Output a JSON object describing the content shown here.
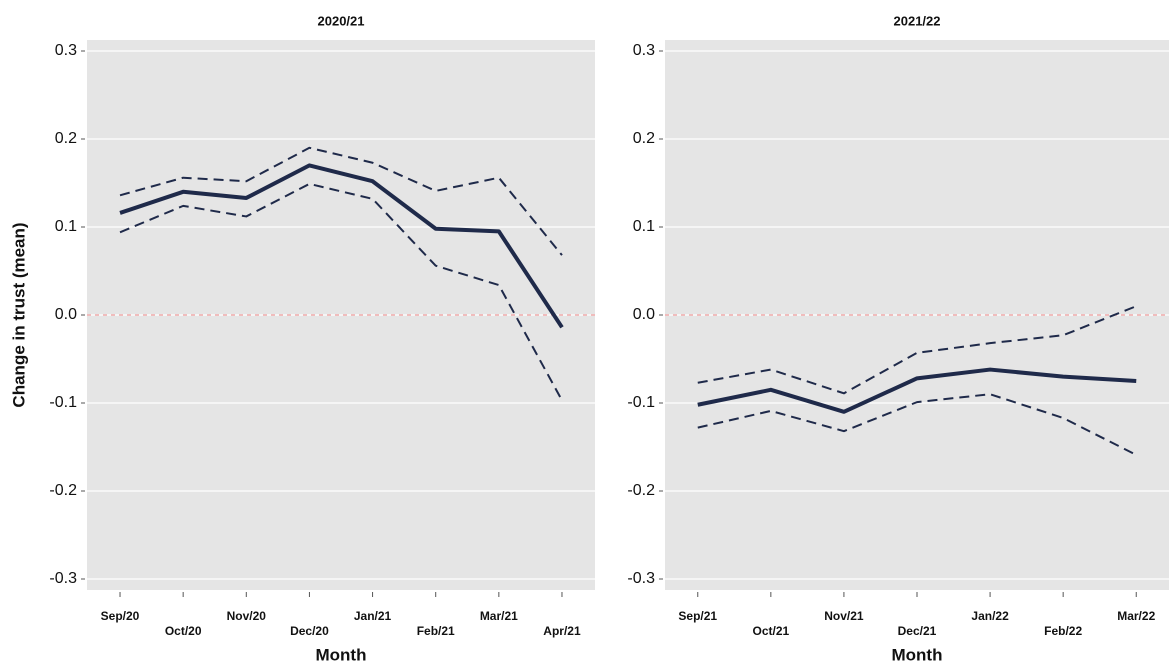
{
  "chart_data": [
    {
      "type": "line",
      "title": "2020/21",
      "x_label": "Month",
      "y_label": "Change in trust (mean)",
      "categories": [
        "Sep/20",
        "Oct/20",
        "Nov/20",
        "Dec/20",
        "Jan/21",
        "Feb/21",
        "Mar/21",
        "Apr/21"
      ],
      "series": [
        {
          "color": "#1f2a4a",
          "dashed": false,
          "values": [
            0.116,
            0.14,
            0.133,
            0.17,
            0.152,
            0.098,
            0.095,
            -0.014
          ]
        },
        {
          "color": "#1f2a4a",
          "dashed": true,
          "values": [
            0.136,
            0.156,
            0.152,
            0.19,
            0.173,
            0.141,
            0.156,
            0.068
          ]
        },
        {
          "color": "#1f2a4a",
          "dashed": true,
          "values": [
            0.094,
            0.124,
            0.112,
            0.149,
            0.132,
            0.056,
            0.034,
            -0.097
          ]
        }
      ],
      "ylim": [
        -0.3125,
        0.3125
      ],
      "yticks": [
        -0.3,
        -0.2,
        -0.1,
        {
          "value": 0,
          "label": "0.0"
        },
        0.1,
        0.2,
        0.3
      ],
      "grid": true,
      "background": "#e5e5e5",
      "reference_line": {
        "value": 0,
        "color": "#f2a0a0"
      }
    },
    {
      "type": "line",
      "title": "2021/22",
      "x_label": "Month",
      "categories": [
        "Sep/21",
        "Oct/21",
        "Nov/21",
        "Dec/21",
        "Jan/22",
        "Feb/22",
        "Mar/22"
      ],
      "series": [
        {
          "color": "#1f2a4a",
          "dashed": false,
          "values": [
            -0.102,
            -0.085,
            -0.11,
            -0.072,
            -0.062,
            -0.07,
            -0.075
          ]
        },
        {
          "color": "#1f2a4a",
          "dashed": true,
          "values": [
            -0.077,
            -0.062,
            -0.089,
            -0.043,
            -0.032,
            -0.023,
            0.01
          ]
        },
        {
          "color": "#1f2a4a",
          "dashed": true,
          "values": [
            -0.128,
            -0.109,
            -0.132,
            -0.099,
            -0.09,
            -0.117,
            -0.159
          ]
        }
      ],
      "ylim": [
        -0.3125,
        0.3125
      ],
      "yticks": [
        -0.3,
        -0.2,
        -0.1,
        {
          "value": 0,
          "label": "0.0"
        },
        0.1,
        0.2,
        0.3
      ],
      "grid": true,
      "background": "#e5e5e5",
      "reference_line": {
        "value": 0,
        "color": "#f2a0a0"
      }
    }
  ]
}
